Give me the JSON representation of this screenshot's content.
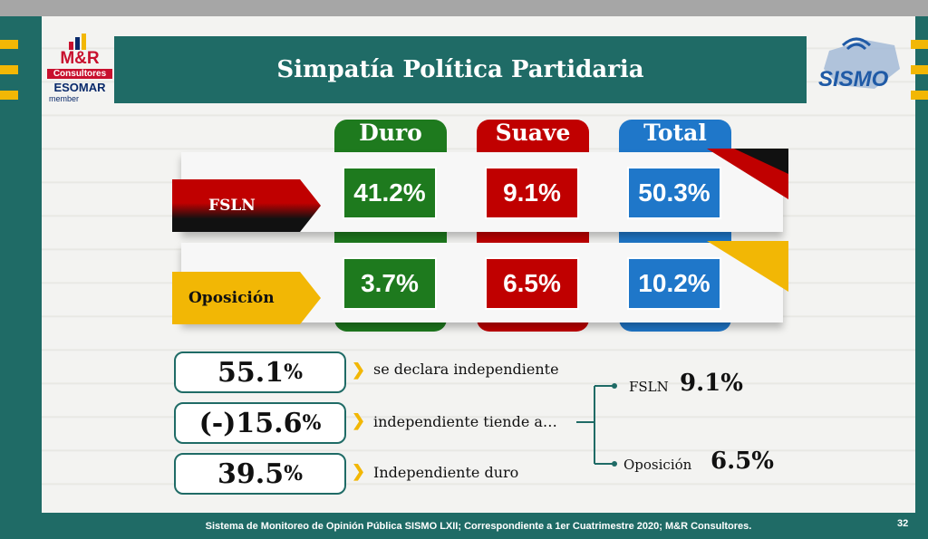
{
  "title": "Simpatía Política Partidaria",
  "logo_left": {
    "name": "M&R",
    "line2": "Consultores",
    "line3": "ESOMAR",
    "line4": "member"
  },
  "logo_right": {
    "name": "SISMO"
  },
  "columns": [
    "Duro",
    "Suave",
    "Total"
  ],
  "rows": [
    {
      "label": "FSLN",
      "values": [
        "41.2%",
        "9.1%",
        "50.3%"
      ]
    },
    {
      "label": "Oposición",
      "values": [
        "3.7%",
        "6.5%",
        "10.2%"
      ]
    }
  ],
  "stats": [
    {
      "value": "55.1",
      "unit": "%",
      "label": "se declara independiente"
    },
    {
      "value": "(-)15.6",
      "unit": "%",
      "label": "independiente tiende a…"
    },
    {
      "value": "39.5",
      "unit": "%",
      "label": "Independiente duro"
    }
  ],
  "branches": [
    {
      "label": "FSLN",
      "value": "9.1%"
    },
    {
      "label": "Oposición",
      "value": "6.5%"
    }
  ],
  "footer": "Sistema de Monitoreo de Opinión Pública SISMO LXII; Correspondiente a 1er Cuatrimestre 2020; M&R Consultores.",
  "page_number": "32",
  "colors": {
    "teal": "#1f6b66",
    "green": "#1e7a1e",
    "red": "#c00000",
    "blue": "#1f77c9",
    "yellow": "#f2b705"
  }
}
